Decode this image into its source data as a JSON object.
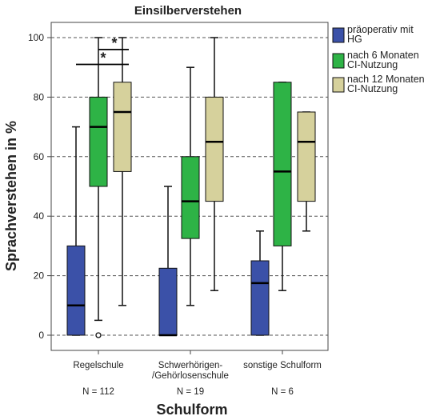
{
  "chart_data": {
    "type": "boxplot",
    "title": "Einsilberverstehen",
    "xlabel": "Schulform",
    "ylabel": "Sprachverstehen in %",
    "ylim": [
      0,
      100
    ],
    "yticks": [
      0,
      20,
      40,
      60,
      80,
      100
    ],
    "grid": "horizontal dashed",
    "legend_position": "right",
    "categories": [
      {
        "label_lines": [
          "Regelschule"
        ],
        "n_label": "N = 112"
      },
      {
        "label_lines": [
          "Schwerhörigen-",
          "/Gehörlosenschule"
        ],
        "n_label": "N = 19"
      },
      {
        "label_lines": [
          "sonstige Schulform"
        ],
        "n_label": "N = 6"
      }
    ],
    "series": [
      {
        "name_lines": [
          "präoperativ mit",
          "HG"
        ],
        "color": "#3b51a8",
        "boxes": [
          {
            "min": 0,
            "q1": 0,
            "median": 10,
            "q3": 30,
            "max": 70,
            "outliers": []
          },
          {
            "min": 0,
            "q1": 0,
            "median": 0,
            "q3": 22.5,
            "max": 50,
            "outliers": []
          },
          {
            "min": 0,
            "q1": 0,
            "median": 17.5,
            "q3": 25,
            "max": 35,
            "outliers": []
          }
        ]
      },
      {
        "name_lines": [
          "nach 6 Monaten",
          "CI-Nutzung"
        ],
        "color": "#2eb346",
        "boxes": [
          {
            "min": 5,
            "q1": 50,
            "median": 70,
            "q3": 80,
            "max": 100,
            "outliers": [
              0
            ]
          },
          {
            "min": 10,
            "q1": 32.5,
            "median": 45,
            "q3": 60,
            "max": 90,
            "outliers": []
          },
          {
            "min": 15,
            "q1": 30,
            "median": 55,
            "q3": 85,
            "max": 85,
            "outliers": []
          }
        ]
      },
      {
        "name_lines": [
          "nach 12 Monaten",
          "CI-Nutzung"
        ],
        "color": "#d6d19c",
        "boxes": [
          {
            "min": 10,
            "q1": 55,
            "median": 75,
            "q3": 85,
            "max": 100,
            "outliers": []
          },
          {
            "min": 15,
            "q1": 45,
            "median": 65,
            "q3": 80,
            "max": 100,
            "outliers": []
          },
          {
            "min": 35,
            "q1": 45,
            "median": 65,
            "q3": 75,
            "max": 75,
            "outliers": []
          }
        ]
      }
    ],
    "significance": [
      {
        "label": "*",
        "from_series": 0,
        "to_series": 2,
        "category": 0,
        "y": 91
      },
      {
        "label": "*",
        "from_series": 1,
        "to_series": 2,
        "category": 0,
        "y": 96
      }
    ]
  }
}
